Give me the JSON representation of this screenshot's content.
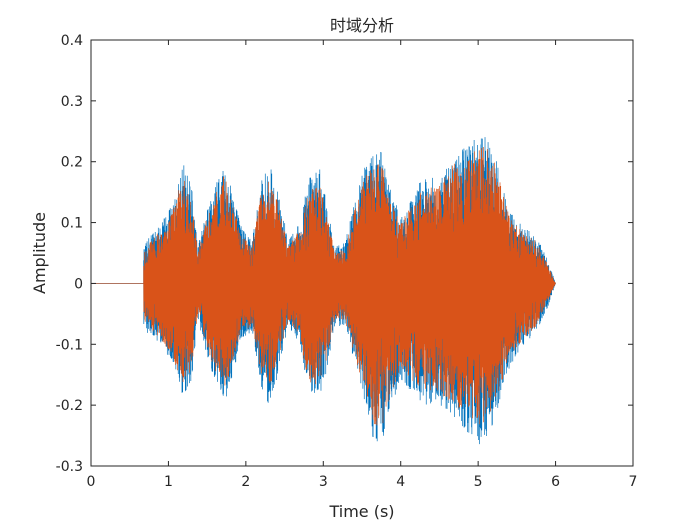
{
  "chart_data": {
    "type": "line",
    "title": "时域分析",
    "xlabel": "Time (s)",
    "ylabel": "Amplitude",
    "xlim": [
      0,
      7
    ],
    "ylim": [
      -0.3,
      0.4
    ],
    "xticks": [
      0,
      1,
      2,
      3,
      4,
      5,
      6,
      7
    ],
    "xtick_labels": [
      "0",
      "1",
      "2",
      "3",
      "4",
      "5",
      "6",
      "7"
    ],
    "yticks": [
      -0.3,
      -0.2,
      -0.1,
      0,
      0.1,
      0.2,
      0.3,
      0.4
    ],
    "ytick_labels": [
      "-0.3",
      "-0.2",
      "-0.1",
      "0",
      "0.1",
      "0.2",
      "0.3",
      "0.4"
    ],
    "grid": false,
    "signal_start": 0.68,
    "signal_end": 6.0,
    "envelope_time": [
      0.68,
      0.72,
      0.9,
      1.05,
      1.2,
      1.3,
      1.38,
      1.5,
      1.65,
      1.72,
      1.85,
      1.95,
      2.08,
      2.2,
      2.3,
      2.4,
      2.55,
      2.7,
      2.8,
      2.95,
      3.05,
      3.15,
      3.28,
      3.4,
      3.55,
      3.65,
      3.75,
      3.85,
      4.0,
      4.15,
      4.3,
      4.5,
      4.7,
      4.9,
      5.05,
      5.2,
      5.4,
      5.6,
      5.75,
      5.9,
      6.0
    ],
    "series": [
      {
        "color": "#0072bd",
        "upper": [
          0.06,
          0.07,
          0.1,
          0.13,
          0.2,
          0.16,
          0.06,
          0.12,
          0.18,
          0.2,
          0.14,
          0.09,
          0.07,
          0.17,
          0.2,
          0.16,
          0.07,
          0.1,
          0.17,
          0.19,
          0.13,
          0.06,
          0.07,
          0.13,
          0.2,
          0.21,
          0.22,
          0.16,
          0.11,
          0.14,
          0.18,
          0.17,
          0.21,
          0.23,
          0.25,
          0.22,
          0.12,
          0.09,
          0.08,
          0.04,
          0.0
        ],
        "lower": [
          -0.07,
          -0.08,
          -0.1,
          -0.13,
          -0.19,
          -0.16,
          -0.06,
          -0.12,
          -0.18,
          -0.2,
          -0.14,
          -0.09,
          -0.08,
          -0.17,
          -0.2,
          -0.16,
          -0.07,
          -0.1,
          -0.18,
          -0.19,
          -0.14,
          -0.07,
          -0.07,
          -0.13,
          -0.2,
          -0.26,
          -0.27,
          -0.21,
          -0.16,
          -0.18,
          -0.2,
          -0.2,
          -0.22,
          -0.25,
          -0.27,
          -0.23,
          -0.14,
          -0.1,
          -0.08,
          -0.04,
          0.0
        ]
      },
      {
        "color": "#d95319",
        "upper": [
          0.05,
          0.06,
          0.09,
          0.12,
          0.18,
          0.14,
          0.05,
          0.11,
          0.16,
          0.18,
          0.12,
          0.08,
          0.06,
          0.15,
          0.17,
          0.14,
          0.06,
          0.09,
          0.15,
          0.17,
          0.11,
          0.05,
          0.06,
          0.12,
          0.18,
          0.19,
          0.2,
          0.14,
          0.1,
          0.13,
          0.16,
          0.16,
          0.2,
          0.21,
          0.23,
          0.21,
          0.11,
          0.08,
          0.07,
          0.03,
          0.0
        ],
        "lower": [
          -0.06,
          -0.07,
          -0.09,
          -0.12,
          -0.17,
          -0.14,
          -0.05,
          -0.11,
          -0.16,
          -0.18,
          -0.12,
          -0.08,
          -0.07,
          -0.15,
          -0.17,
          -0.14,
          -0.06,
          -0.09,
          -0.16,
          -0.17,
          -0.12,
          -0.06,
          -0.06,
          -0.12,
          -0.18,
          -0.23,
          -0.24,
          -0.19,
          -0.14,
          -0.16,
          -0.18,
          -0.18,
          -0.2,
          -0.22,
          -0.24,
          -0.21,
          -0.12,
          -0.09,
          -0.07,
          -0.03,
          0.0
        ]
      }
    ]
  }
}
